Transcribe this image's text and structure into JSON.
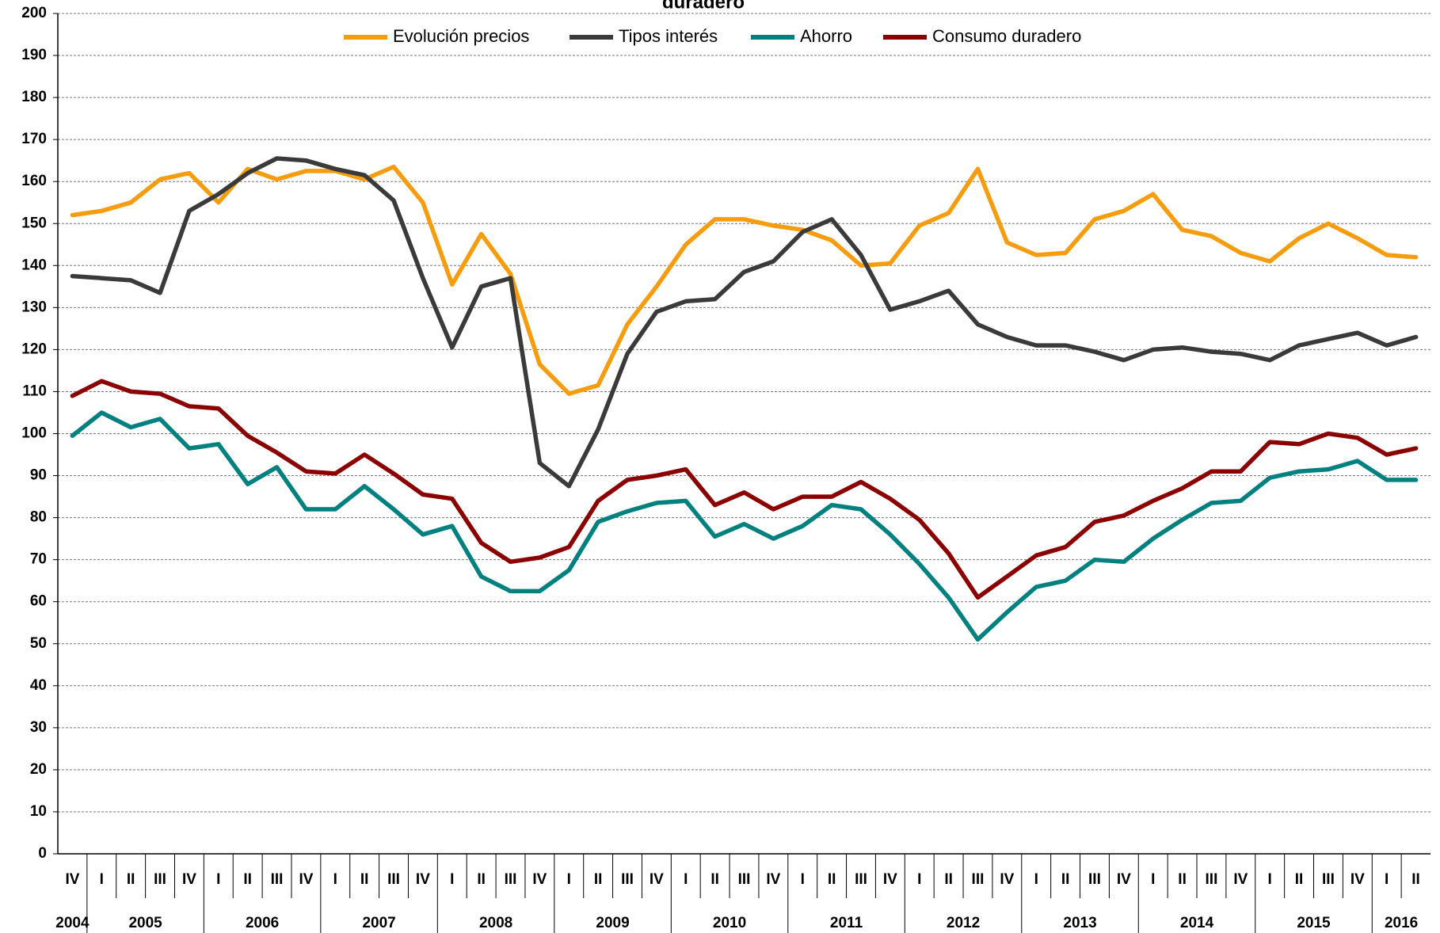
{
  "chart_data": {
    "type": "line",
    "title": "duradero",
    "categories": [
      "IV",
      "I",
      "II",
      "III",
      "IV",
      "I",
      "II",
      "III",
      "IV",
      "I",
      "II",
      "III",
      "IV",
      "I",
      "II",
      "III",
      "IV",
      "I",
      "II",
      "III",
      "IV",
      "I",
      "II",
      "III",
      "IV",
      "I",
      "II",
      "III",
      "IV",
      "I",
      "II",
      "III",
      "IV",
      "I",
      "II",
      "III",
      "IV",
      "I",
      "II",
      "III",
      "IV",
      "I",
      "II",
      "III",
      "IV",
      "I",
      "II"
    ],
    "category_years": [
      "2004",
      "2005",
      "2005",
      "2005",
      "2005",
      "2006",
      "2006",
      "2006",
      "2006",
      "2007",
      "2007",
      "2007",
      "2007",
      "2008",
      "2008",
      "2008",
      "2008",
      "2009",
      "2009",
      "2009",
      "2009",
      "2010",
      "2010",
      "2010",
      "2010",
      "2011",
      "2011",
      "2011",
      "2011",
      "2012",
      "2012",
      "2012",
      "2012",
      "2013",
      "2013",
      "2013",
      "2013",
      "2014",
      "2014",
      "2014",
      "2014",
      "2015",
      "2015",
      "2015",
      "2015",
      "2016",
      "2016"
    ],
    "series": [
      {
        "name": "Evolución precios",
        "color": "#f59d0e",
        "values": [
          152,
          153,
          155,
          160.5,
          162,
          155,
          163,
          160.5,
          162.5,
          162.5,
          160.5,
          163.5,
          155,
          135.5,
          147.5,
          138,
          116.5,
          109.5,
          111.5,
          126,
          135,
          145,
          151,
          151,
          149.5,
          148.5,
          146,
          140,
          140.5,
          149.5,
          152.5,
          163,
          145.5,
          142.5,
          143,
          151,
          153,
          157,
          148.5,
          147,
          143,
          141,
          146.5,
          150,
          146.5,
          142.5,
          142
        ]
      },
      {
        "name": "Tipos interés",
        "color": "#3a3a3a",
        "values": [
          137.5,
          137,
          136.5,
          133.5,
          153,
          157,
          162,
          165.5,
          165,
          163,
          161.5,
          155.5,
          137,
          120.5,
          135,
          137,
          93,
          87.5,
          101,
          119,
          129,
          131.5,
          132,
          138.5,
          141,
          148,
          151,
          142.5,
          129.5,
          131.5,
          134,
          126,
          123,
          121,
          121,
          119.5,
          117.5,
          120,
          120.5,
          119.5,
          119,
          117.5,
          121,
          122.5,
          124,
          121,
          123
        ]
      },
      {
        "name": "Ahorro",
        "color": "#00807f",
        "values": [
          99.5,
          105,
          101.5,
          103.5,
          96.5,
          97.5,
          88,
          92,
          82,
          82,
          87.5,
          82,
          76,
          78,
          66,
          62.5,
          62.5,
          67.5,
          79,
          81.5,
          83.5,
          84,
          75.5,
          78.5,
          75,
          78,
          83,
          82,
          76,
          69,
          61,
          51,
          57.5,
          63.5,
          65,
          70,
          69.5,
          75,
          79.5,
          83.5,
          84,
          89.5,
          91,
          91.5,
          93.5,
          89,
          89
        ]
      },
      {
        "name": "Consumo duradero",
        "color": "#8b0000",
        "values": [
          109,
          112.5,
          110,
          109.5,
          106.5,
          106,
          99.5,
          95.5,
          91,
          90.5,
          95,
          90.5,
          85.5,
          84.5,
          74,
          69.5,
          70.5,
          73,
          84,
          89,
          90,
          91.5,
          83,
          86,
          82,
          85,
          85,
          88.5,
          84.5,
          79.5,
          71.5,
          61,
          66,
          71,
          73,
          79,
          80.5,
          84,
          87,
          91,
          91,
          98,
          97.5,
          100,
          99,
          95,
          96.5
        ]
      }
    ],
    "ylim": [
      0,
      200
    ],
    "yticks": [
      0,
      10,
      20,
      30,
      40,
      50,
      60,
      70,
      80,
      90,
      100,
      110,
      120,
      130,
      140,
      150,
      160,
      170,
      180,
      190,
      200
    ],
    "grid": true
  }
}
